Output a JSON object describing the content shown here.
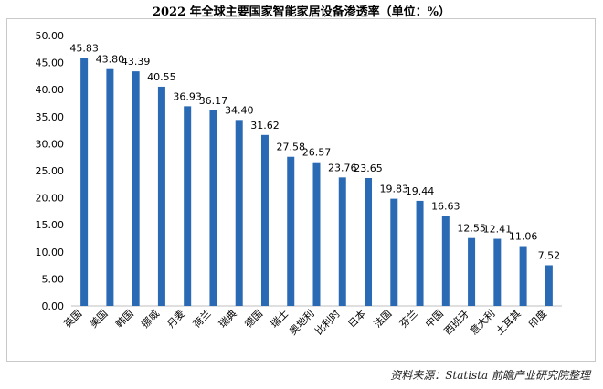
{
  "chart_data": {
    "type": "bar",
    "title": "2022 年全球主要国家智能家居设备渗透率（单位：%）",
    "categories": [
      "英国",
      "美国",
      "韩国",
      "挪威",
      "丹麦",
      "荷兰",
      "瑞典",
      "德国",
      "瑞士",
      "奥地利",
      "比利时",
      "日本",
      "法国",
      "芬兰",
      "中国",
      "西班牙",
      "意大利",
      "土耳其",
      "印度"
    ],
    "values": [
      45.83,
      43.8,
      43.39,
      40.55,
      36.93,
      36.17,
      34.4,
      31.62,
      27.58,
      26.57,
      23.76,
      23.65,
      19.83,
      19.44,
      16.63,
      12.55,
      12.41,
      11.06,
      7.52
    ],
    "value_labels": [
      "45.83",
      "43.80",
      "43.39",
      "40.55",
      "36.93",
      "36.17",
      "34.40",
      "31.62",
      "27.58",
      "26.57",
      "23.76",
      "23.65",
      "19.83",
      "19.44",
      "16.63",
      "12.55",
      "12.41",
      "11.06",
      "7.52"
    ],
    "y_ticks": [
      "0.00",
      "5.00",
      "10.00",
      "15.00",
      "20.00",
      "25.00",
      "30.00",
      "35.00",
      "40.00",
      "45.00",
      "50.00"
    ],
    "ylim": [
      0,
      50
    ],
    "grid": false,
    "legend": "none",
    "bar_color": "#2a6ab5",
    "source": "资料来源：Statista 前瞻产业研究院整理"
  }
}
